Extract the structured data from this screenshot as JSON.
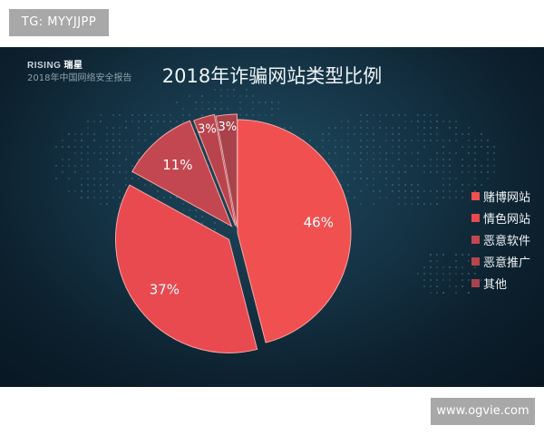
{
  "watermarks": {
    "top": "TG: MYYJJPP",
    "bottom": "www.ogvie.com"
  },
  "header": {
    "brand_en": "RISING",
    "brand_cn": "瑞星",
    "subtitle": "2018年中国网络安全报告"
  },
  "chart_data": {
    "type": "pie",
    "title": "2018年诈骗网站类型比例",
    "slices": [
      {
        "name": "赌博网站",
        "value": 46,
        "label": "46%",
        "color": "#f05050"
      },
      {
        "name": "情色网站",
        "value": 37,
        "label": "37%",
        "color": "#e84a4f"
      },
      {
        "name": "恶意软件",
        "value": 11,
        "label": "11%",
        "color": "#c34750"
      },
      {
        "name": "恶意推广",
        "value": 3,
        "label": "3%",
        "color": "#b9444d"
      },
      {
        "name": "其他",
        "value": 3,
        "label": "3%",
        "color": "#a8434c"
      }
    ],
    "legend_position": "right",
    "exploded": true
  }
}
